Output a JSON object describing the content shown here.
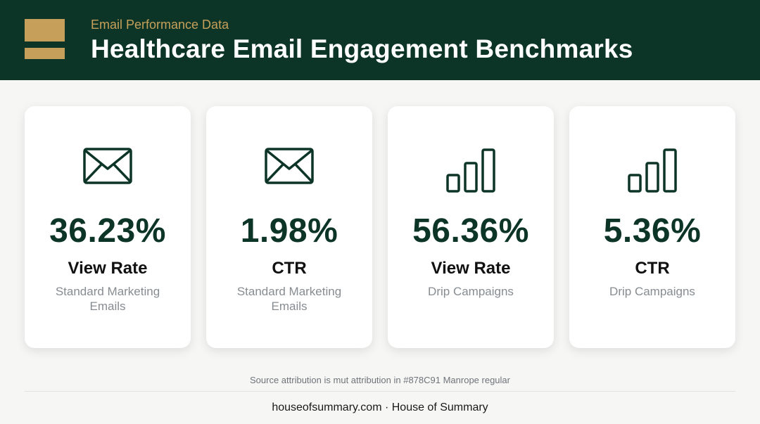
{
  "header": {
    "eyebrow": "Email Performance Data",
    "title": "Healthcare Email Engagement Benchmarks"
  },
  "cards": [
    {
      "icon": "envelope-icon",
      "value": "36.23%",
      "metric": "View Rate",
      "subtitle": "Standard Marketing Emails"
    },
    {
      "icon": "envelope-icon",
      "value": "1.98%",
      "metric": "CTR",
      "subtitle": "Standard Marketing Emails"
    },
    {
      "icon": "bar-chart-icon",
      "value": "56.36%",
      "metric": "View Rate",
      "subtitle": "Drip Campaigns"
    },
    {
      "icon": "bar-chart-icon",
      "value": "5.36%",
      "metric": "CTR",
      "subtitle": "Drip Campaigns"
    }
  ],
  "source_note": "Source attribution is mut attribution in #878C91 Manrope regular",
  "footer": "houseofsummary.com · House of Summary",
  "colors": {
    "header_bg": "#0d3527",
    "accent_gold": "#c6a05a",
    "value_green": "#0d3527",
    "muted_text": "#878c91"
  }
}
